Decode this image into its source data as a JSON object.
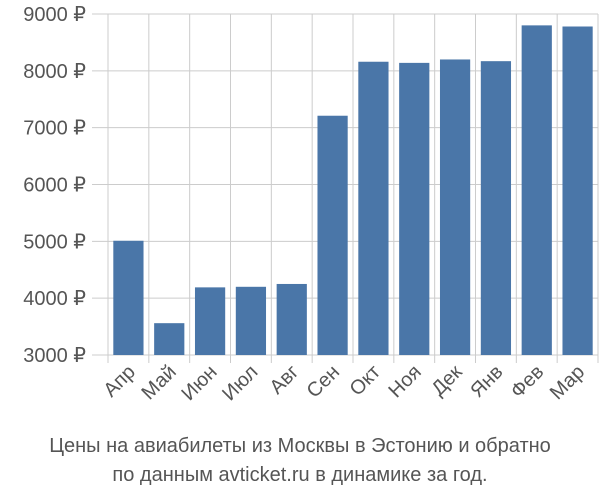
{
  "caption": {
    "line1": "Цены на авиабилеты из Москвы в Эстонию и обратно",
    "line2": "по данным avticket.ru в динамике за год."
  },
  "chart_data": {
    "type": "bar",
    "categories": [
      "Апр",
      "Май",
      "Июн",
      "Июл",
      "Авг",
      "Сен",
      "Окт",
      "Ноя",
      "Дек",
      "Янв",
      "Фев",
      "Мар"
    ],
    "values": [
      5010,
      3560,
      4190,
      4200,
      4250,
      7210,
      8160,
      8140,
      8200,
      8170,
      8800,
      8780
    ],
    "ylim": [
      3000,
      9000
    ],
    "yticks": [
      3000,
      4000,
      5000,
      6000,
      7000,
      8000,
      9000
    ],
    "ytick_labels": [
      "3000 ₽",
      "4000 ₽",
      "5000 ₽",
      "6000 ₽",
      "7000 ₽",
      "8000 ₽",
      "9000 ₽"
    ],
    "grid": true,
    "colors": {
      "bar": "#4a76a8",
      "grid": "#cccccc",
      "axis": "#888888"
    }
  }
}
